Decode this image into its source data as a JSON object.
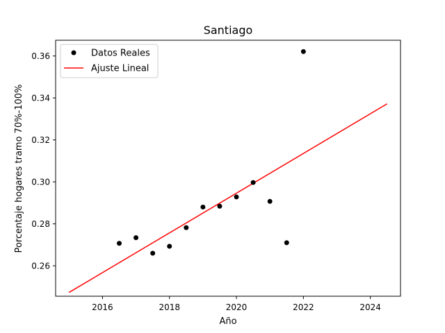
{
  "chart_data": {
    "type": "scatter",
    "title": "Santiago",
    "xlabel": "Año",
    "ylabel": "Porcentaje hogares tramo 70%-100%",
    "xlim": [
      2014.6,
      2024.9
    ],
    "ylim": [
      0.2455,
      0.3675
    ],
    "xticks": [
      2016,
      2018,
      2020,
      2022,
      2024
    ],
    "yticks": [
      0.26,
      0.28,
      0.3,
      0.32,
      0.34,
      0.36
    ],
    "xtick_labels": [
      "2016",
      "2018",
      "2020",
      "2022",
      "2024"
    ],
    "ytick_labels": [
      "0.26",
      "0.28",
      "0.30",
      "0.32",
      "0.34",
      "0.36"
    ],
    "grid": false,
    "legend_position": "top-left",
    "series": [
      {
        "name": "Datos Reales",
        "kind": "scatter",
        "color": "#000000",
        "x": [
          2016.5,
          2017.0,
          2017.5,
          2018.0,
          2018.5,
          2019.0,
          2019.5,
          2020.0,
          2020.5,
          2021.0,
          2021.5,
          2022.0
        ],
        "y": [
          0.2707,
          0.2734,
          0.266,
          0.2693,
          0.2782,
          0.288,
          0.2884,
          0.2928,
          0.2997,
          0.2907,
          0.271,
          0.3621
        ]
      },
      {
        "name": "Ajuste Lineal",
        "kind": "line",
        "color": "#ff0000",
        "x": [
          2015.0,
          2024.5
        ],
        "y": [
          0.2473,
          0.3372
        ]
      }
    ]
  }
}
